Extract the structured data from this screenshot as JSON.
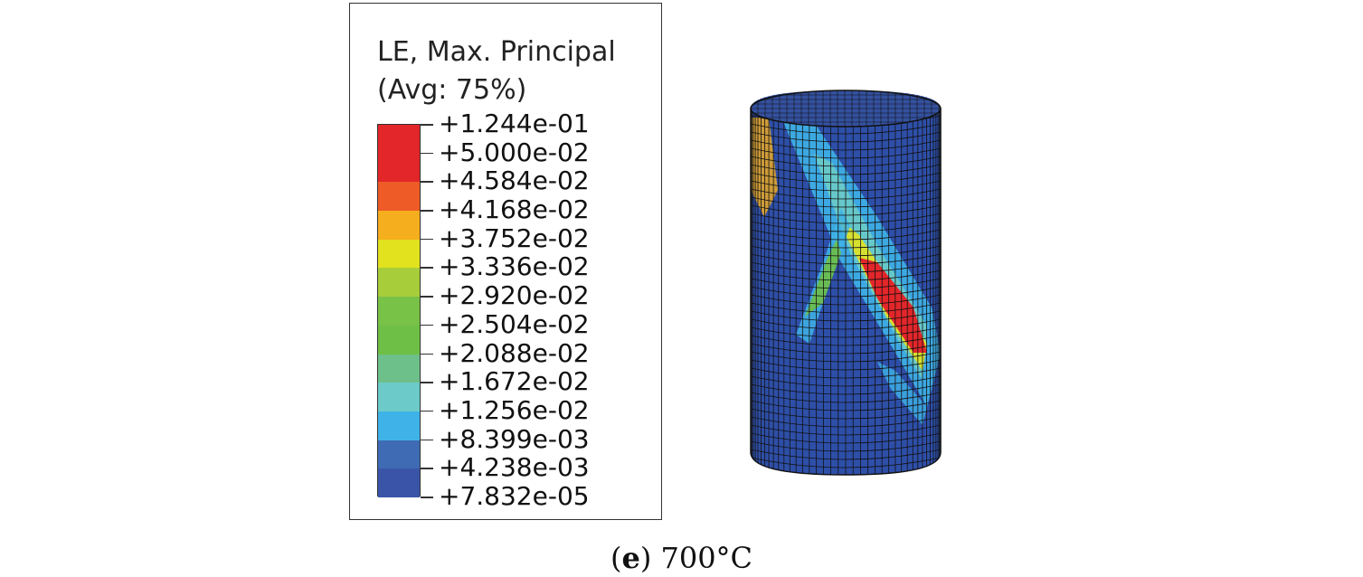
{
  "legend": {
    "title_line1": "LE, Max. Principal",
    "title_line2": "(Avg: 75%)",
    "ticks": [
      "+1.244e-01",
      "+5.000e-02",
      "+4.584e-02",
      "+4.168e-02",
      "+3.752e-02",
      "+3.336e-02",
      "+2.920e-02",
      "+2.504e-02",
      "+2.088e-02",
      "+1.672e-02",
      "+1.256e-02",
      "+8.399e-03",
      "+4.238e-03",
      "+7.832e-05"
    ],
    "band_colors": [
      "#e3262a",
      "#e3262a",
      "#ee5b26",
      "#f5ae1d",
      "#e2e21f",
      "#a8cd3b",
      "#78c248",
      "#6ebf46",
      "#6dc08a",
      "#6ccbc8",
      "#3fb3e8",
      "#3f6bb5",
      "#3a55a8"
    ]
  },
  "caption": {
    "letter": "e",
    "text": "700°C"
  },
  "mesh": {
    "base_color": "#2e4fa8",
    "grid_color": "#111111"
  }
}
